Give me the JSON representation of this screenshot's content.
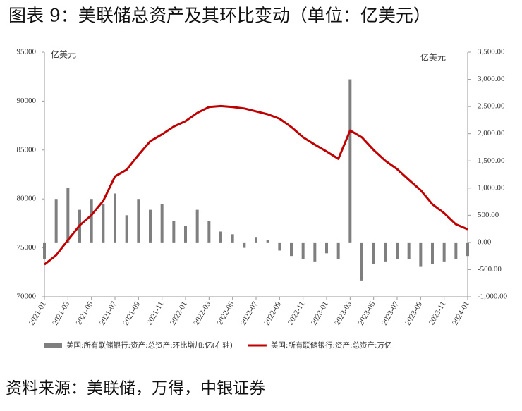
{
  "chart_data": {
    "type": "combo",
    "title": "图表 9：美联储总资产及其环比变动（单位：亿美元）",
    "left_unit": "亿美元",
    "right_unit": "亿美元",
    "source": "资料来源：美联储，万得，中银证券",
    "categories": [
      "2021-01",
      null,
      "2021-03",
      null,
      "2021-05",
      null,
      "2021-07",
      null,
      "2021-09",
      null,
      "2021-11",
      null,
      "2022-01",
      null,
      "2022-03",
      null,
      "2022-05",
      null,
      "2022-07",
      null,
      "2022-09",
      null,
      "2022-11",
      null,
      "2023-01",
      null,
      "2023-03",
      null,
      "2023-05",
      null,
      "2023-07",
      null,
      "2023-09",
      null,
      "2023-11",
      null,
      "2024-01"
    ],
    "series": [
      {
        "name": "美国:所有联储银行:资产:总资产:环比增加:亿(右轴)",
        "type": "bar",
        "axis": "y2",
        "color": "#7f7f7f",
        "values": [
          -300,
          800,
          1000,
          600,
          800,
          700,
          900,
          500,
          800,
          600,
          700,
          400,
          300,
          600,
          400,
          200,
          150,
          -100,
          100,
          50,
          -150,
          -250,
          -300,
          -350,
          -200,
          -300,
          3000,
          -700,
          -400,
          -350,
          -300,
          -300,
          -450,
          -400,
          -350,
          -300,
          -250
        ]
      },
      {
        "name": "美国:所有联储银行:资产:总资产:万亿",
        "type": "line",
        "color": "#c00000",
        "values": [
          73300,
          74250,
          75800,
          77300,
          78350,
          79800,
          82300,
          83000,
          84500,
          85900,
          86600,
          87400,
          87950,
          88800,
          89400,
          89500,
          89400,
          89250,
          88950,
          88650,
          88200,
          87350,
          86300,
          85550,
          84850,
          84100,
          87000,
          86300,
          85000,
          83900,
          83050,
          81950,
          80900,
          79450,
          78550,
          77400,
          76900
        ]
      }
    ],
    "ylim": [
      70000,
      95000
    ],
    "yticks": [
      70000,
      75000,
      80000,
      85000,
      90000,
      95000
    ],
    "y2lim": [
      -1000,
      3500
    ],
    "y2ticks": [
      {
        "value": -1000,
        "label": "-1,000.00"
      },
      {
        "value": -500,
        "label": "-500.00"
      },
      {
        "value": 0,
        "label": "0.00"
      },
      {
        "value": 500,
        "label": "500.00"
      },
      {
        "value": 1000,
        "label": "1,000.00"
      },
      {
        "value": 1500,
        "label": "1,500.00"
      },
      {
        "value": 2000,
        "label": "2,000.00"
      },
      {
        "value": 2500,
        "label": "2,500.00"
      },
      {
        "value": 3000,
        "label": "3,000.00"
      },
      {
        "value": 3500,
        "label": "3,500.00"
      }
    ]
  }
}
